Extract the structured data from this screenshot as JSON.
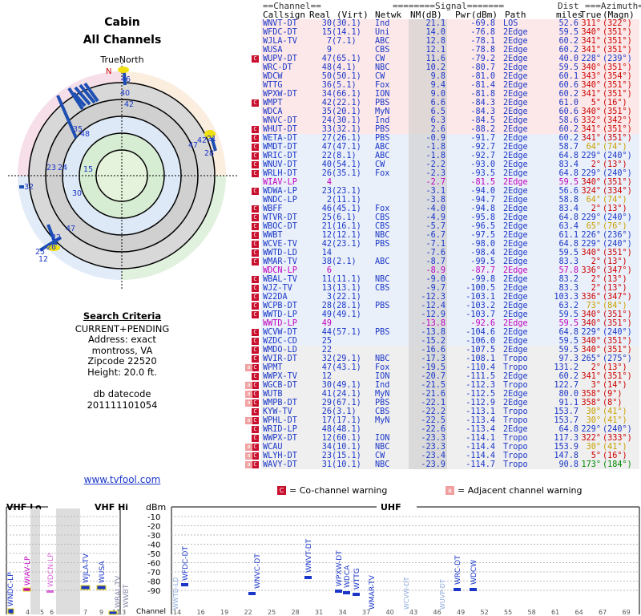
{
  "page": {
    "title_line1": "Cabin",
    "title_line2": "All Channels",
    "north_label": "TrueNorth",
    "north_letter": "N"
  },
  "criteria": {
    "heading": "Search Criteria",
    "lines": [
      "CURRENT+PENDING",
      "Address: exact",
      "montross, VA",
      "Zipcode 22520",
      "Height: 20.0 ft."
    ],
    "db_label": "db datecode",
    "db_value": "201111101054"
  },
  "link": "www.tvfool.com",
  "table": {
    "group_headers": [
      "==Channel==",
      "========Signal=======",
      "Dist",
      "===Azimuth==="
    ],
    "col_headers": [
      "Callsign",
      "Real",
      "(Virt)",
      "Netwk",
      "NM(dB)",
      "Pwr(dBm)",
      "Path",
      "miles",
      "True",
      "(Magn)"
    ],
    "rows": [
      [
        "WNVT-DT",
        "30",
        "(30.1)",
        "Ind",
        "21.1",
        "-69.8",
        "LOS",
        "52.6",
        "311°",
        "(322°)",
        ""
      ],
      [
        "WFDC-DT",
        "15",
        "(14.1)",
        "Uni",
        "14.0",
        "-76.8",
        "2Edge",
        "59.5",
        "340°",
        "(351°)",
        ""
      ],
      [
        "WJLA-TV",
        "7",
        "(7.1)",
        "ABC",
        "12.8",
        "-78.1",
        "2Edge",
        "60.2",
        "341°",
        "(351°)",
        ""
      ],
      [
        "WUSA",
        "9",
        "",
        "CBS",
        "12.1",
        "-78.8",
        "2Edge",
        "60.2",
        "341°",
        "(351°)",
        ""
      ],
      [
        "WUPV-DT",
        "47",
        "(65.1)",
        "CW",
        "11.6",
        "-79.2",
        "2Edge",
        "40.0",
        "228°",
        "(239°)",
        "C"
      ],
      [
        "WRC-DT",
        "48",
        "(4.1)",
        "NBC",
        "10.2",
        "-80.7",
        "2Edge",
        "59.5",
        "340°",
        "(351°)",
        ""
      ],
      [
        "WDCW",
        "50",
        "(50.1)",
        "CW",
        "9.8",
        "-81.0",
        "2Edge",
        "60.1",
        "343°",
        "(354°)",
        ""
      ],
      [
        "WTTG",
        "36",
        "(5.1)",
        "Fox",
        "9.4",
        "-81.4",
        "2Edge",
        "60.6",
        "340°",
        "(351°)",
        ""
      ],
      [
        "WPXW-DT",
        "34",
        "(66.1)",
        "ION",
        "9.0",
        "-81.8",
        "2Edge",
        "60.2",
        "341°",
        "(351°)",
        ""
      ],
      [
        "WMPT",
        "42",
        "(22.1)",
        "PBS",
        "6.6",
        "-84.3",
        "2Edge",
        "61.0",
        "5°",
        "(16°)",
        "C"
      ],
      [
        "WDCA",
        "35",
        "(20.1)",
        "MyN",
        "6.5",
        "-84.3",
        "2Edge",
        "60.6",
        "340°",
        "(351°)",
        ""
      ],
      [
        "WNVC-DT",
        "24",
        "(30.1)",
        "Ind",
        "6.3",
        "-84.5",
        "2Edge",
        "58.6",
        "332°",
        "(342°)",
        ""
      ],
      [
        "WHUT-DT",
        "33",
        "(32.1)",
        "PBS",
        "2.6",
        "-88.2",
        "2Edge",
        "60.2",
        "341°",
        "(351°)",
        "C"
      ],
      [
        "WETA-DT",
        "27",
        "(26.1)",
        "PBS",
        "-0.9",
        "-91.7",
        "2Edge",
        "60.2",
        "341°",
        "(351°)",
        "C"
      ],
      [
        "WMDT-DT",
        "47",
        "(47.1)",
        "ABC",
        "-1.8",
        "-92.7",
        "2Edge",
        "58.7",
        "64°",
        "(74°)",
        "C"
      ],
      [
        "WRIC-DT",
        "22",
        "(8.1)",
        "ABC",
        "-1.8",
        "-92.7",
        "2Edge",
        "64.8",
        "229°",
        "(240°)",
        "C"
      ],
      [
        "WNUV-DT",
        "40",
        "(54.1)",
        "CW",
        "-2.2",
        "-93.0",
        "2Edge",
        "83.4",
        "2°",
        "(13°)",
        "C"
      ],
      [
        "WRLH-DT",
        "26",
        "(35.1)",
        "Fox",
        "-2.3",
        "-93.5",
        "2Edge",
        "64.8",
        "229°",
        "(240°)",
        "C"
      ],
      [
        "WIAV-LP",
        "4",
        "",
        "",
        "-2.7",
        "-81.5",
        "2Edge",
        "59.5",
        "340°",
        "(351°)",
        ""
      ],
      [
        "WDWA-LP",
        "23",
        "(23.1)",
        "",
        "-3.1",
        "-94.0",
        "2Edge",
        "56.6",
        "324°",
        "(334°)",
        "C"
      ],
      [
        "WNDC-LP",
        "2",
        "(11.1)",
        "",
        "-3.8",
        "-94.7",
        "2Edge",
        "58.8",
        "64°",
        "(74°)",
        ""
      ],
      [
        "WBFF",
        "46",
        "(45.1)",
        "Fox",
        "-4.0",
        "-94.8",
        "2Edge",
        "83.4",
        "2°",
        "(13°)",
        "C"
      ],
      [
        "WTVR-DT",
        "25",
        "(6.1)",
        "CBS",
        "-4.9",
        "-95.8",
        "2Edge",
        "64.8",
        "229°",
        "(240°)",
        "C"
      ],
      [
        "WBOC-DT",
        "21",
        "(16.1)",
        "CBS",
        "-5.7",
        "-96.5",
        "2Edge",
        "63.4",
        "65°",
        "(76°)",
        "C"
      ],
      [
        "WWBT",
        "12",
        "(12.1)",
        "NBC",
        "-6.7",
        "-97.5",
        "2Edge",
        "61.1",
        "226°",
        "(236°)",
        "C"
      ],
      [
        "WCVE-TV",
        "42",
        "(23.1)",
        "PBS",
        "-7.1",
        "-98.0",
        "2Edge",
        "64.8",
        "229°",
        "(240°)",
        "C"
      ],
      [
        "WWTD-LD",
        "14",
        "",
        "",
        "-7.6",
        "-98.4",
        "2Edge",
        "59.5",
        "340°",
        "(351°)",
        "C"
      ],
      [
        "WMAR-TV",
        "38",
        "(2.1)",
        "ABC",
        "-8.7",
        "-99.5",
        "2Edge",
        "83.3",
        "2°",
        "(13°)",
        "C"
      ],
      [
        "WDCN-LP",
        "6",
        "",
        "",
        "-8.9",
        "-87.7",
        "2Edge",
        "57.8",
        "336°",
        "(347°)",
        ""
      ],
      [
        "WBAL-TV",
        "11",
        "(11.1)",
        "NBC",
        "-9.0",
        "-99.8",
        "2Edge",
        "83.2",
        "2°",
        "(13°)",
        "C"
      ],
      [
        "WJZ-TV",
        "13",
        "(13.1)",
        "CBS",
        "-9.7",
        "-100.5",
        "2Edge",
        "83.3",
        "2°",
        "(13°)",
        "C"
      ],
      [
        "W22DA",
        "3",
        "(22.1)",
        "",
        "-12.3",
        "-103.1",
        "2Edge",
        "103.3",
        "336°",
        "(347°)",
        "C"
      ],
      [
        "WCPB-DT",
        "28",
        "(28.1)",
        "PBS",
        "-12.4",
        "-103.2",
        "2Edge",
        "63.2",
        "73°",
        "(84°)",
        "C"
      ],
      [
        "WWTD-LP",
        "49",
        "(49.1)",
        "",
        "-12.9",
        "-103.7",
        "2Edge",
        "59.5",
        "340°",
        "(351°)",
        "C"
      ],
      [
        "WWTD-LP",
        "49",
        "",
        "",
        "-13.8",
        "-92.6",
        "2Edge",
        "59.5",
        "340°",
        "(351°)",
        ""
      ],
      [
        "WCVW-DT",
        "44",
        "(57.1)",
        "PBS",
        "-13.8",
        "-104.6",
        "2Edge",
        "64.8",
        "229°",
        "(240°)",
        "C"
      ],
      [
        "WZDC-CD",
        "25",
        "",
        "",
        "-15.2",
        "-106.0",
        "2Edge",
        "59.5",
        "340°",
        "(351°)",
        "C"
      ],
      [
        "WMDO-LD",
        "22",
        "",
        "",
        "-16.6",
        "-107.5",
        "2Edge",
        "59.5",
        "340°",
        "(351°)",
        "C"
      ],
      [
        "WVIR-DT",
        "32",
        "(29.1)",
        "NBC",
        "-17.3",
        "-108.1",
        "Tropo",
        "97.3",
        "265°",
        "(275°)",
        "C"
      ],
      [
        "WPMT",
        "47",
        "(43.1)",
        "Fox",
        "-19.5",
        "-110.4",
        "Tropo",
        "131.2",
        "2°",
        "(13°)",
        "CA"
      ],
      [
        "WWPX-TV",
        "12",
        "",
        "ION",
        "-20.7",
        "-111.5",
        "2Edge",
        "60.2",
        "341°",
        "(351°)",
        "C"
      ],
      [
        "WGCB-DT",
        "30",
        "(49.1)",
        "Ind",
        "-21.5",
        "-112.3",
        "Tropo",
        "122.7",
        "3°",
        "(14°)",
        "CA"
      ],
      [
        "WUTB",
        "41",
        "(24.1)",
        "MyN",
        "-21.6",
        "-112.5",
        "2Edge",
        "80.0",
        "358°",
        "(9°)",
        "CA"
      ],
      [
        "WMPB-DT",
        "29",
        "(67.1)",
        "PBS",
        "-22.1",
        "-112.9",
        "2Edge",
        "91.1",
        "358°",
        "(8°)",
        "CA"
      ],
      [
        "KYW-TV",
        "26",
        "(3.1)",
        "CBS",
        "-22.2",
        "-113.1",
        "Tropo",
        "153.7",
        "30°",
        "(41°)",
        "C"
      ],
      [
        "WPHL-DT",
        "17",
        "(17.1)",
        "MyN",
        "-22.5",
        "-113.4",
        "Tropo",
        "153.7",
        "30°",
        "(41°)",
        "CA"
      ],
      [
        "WRID-LP",
        "48",
        "(48.1)",
        "",
        "-22.6",
        "-113.4",
        "2Edge",
        "64.8",
        "229°",
        "(240°)",
        "C"
      ],
      [
        "WWPX-DT",
        "12",
        "(60.1)",
        "ION",
        "-23.3",
        "-114.1",
        "Tropo",
        "117.3",
        "322°",
        "(333°)",
        "C"
      ],
      [
        "WCAU",
        "34",
        "(10.1)",
        "NBC",
        "-23.3",
        "-114.4",
        "Tropo",
        "153.9",
        "30°",
        "(41°)",
        "CA"
      ],
      [
        "WLYH-DT",
        "23",
        "(15.1)",
        "CW",
        "-23.4",
        "-114.4",
        "Tropo",
        "147.8",
        "5°",
        "(16°)",
        "CA"
      ],
      [
        "WAVY-DT",
        "31",
        "(10.1)",
        "NBC",
        "-23.9",
        "-114.7",
        "Tropo",
        "90.8",
        "173°",
        "(184°)",
        "CA"
      ]
    ]
  },
  "legend": {
    "co_channel": "= Co-channel warning",
    "adjacent": "= Adjacent channel warning",
    "co_mark": "C",
    "adj_mark": "a"
  },
  "bottom_chart": {
    "vhf_lo": "VHF Lo",
    "vhf_hi": "VHF Hi",
    "uhf": "UHF",
    "dbm_label": "dBm",
    "channel_label": "Channel",
    "y_ticks": [
      "-10",
      "-20",
      "-30",
      "-40",
      "-50",
      "-60",
      "-70",
      "-80",
      "-90"
    ],
    "vhf_channels": [
      "2",
      "4",
      "5",
      "6",
      "7",
      "9",
      "11",
      "13"
    ],
    "uhf_channels": [
      "14",
      "16",
      "19",
      "22",
      "25",
      "28",
      "31",
      "34",
      "37",
      "40",
      "43",
      "46",
      "49",
      "52",
      "55",
      "58",
      "61",
      "64",
      "67",
      "69"
    ]
  },
  "colors": {
    "ind": "#1a36c8",
    "magenta": "#c000c0",
    "co_channel_bg": "#c8102e",
    "adjacent_bg": "#f0a0a0"
  }
}
